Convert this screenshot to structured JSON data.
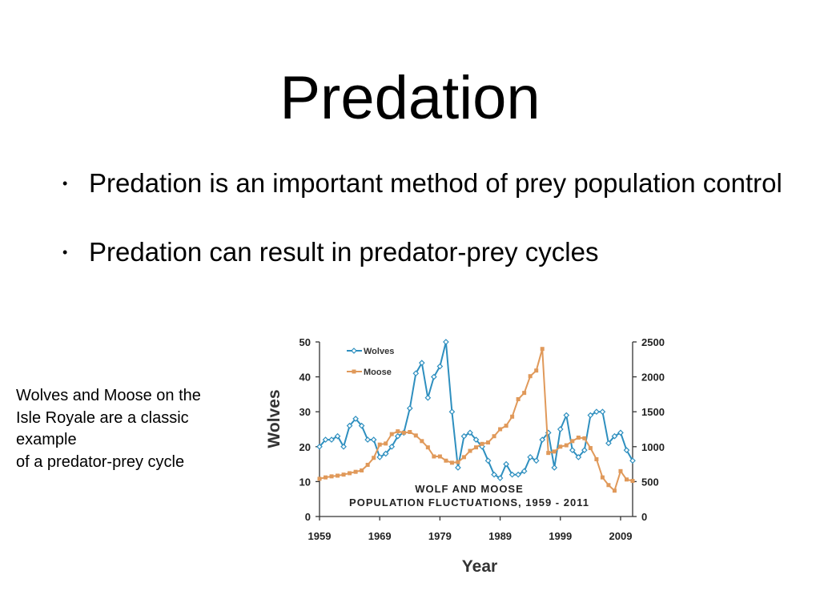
{
  "slide": {
    "title": "Predation",
    "bullets": [
      "Predation is an important method of prey population control",
      "Predation can result in predator-prey cycles"
    ],
    "bullet_glyph": "•",
    "caption_lines": [
      "Wolves and Moose on the",
      "Isle Royale are a classic",
      "example",
      "of a predator-prey cycle"
    ]
  },
  "chart_data": {
    "type": "line",
    "title_lines": [
      "WOLF AND MOOSE",
      "POPULATION FLUCTUATIONS, 1959 - 2011"
    ],
    "xlabel": "Year",
    "ylabel": "Wolves",
    "xlim": [
      1959,
      2011
    ],
    "x_ticks": [
      1959,
      1969,
      1979,
      1989,
      1999,
      2009
    ],
    "y_left_lim": [
      0,
      50
    ],
    "y_left_ticks": [
      0,
      10,
      20,
      30,
      40,
      50
    ],
    "y_right_lim": [
      0,
      2500
    ],
    "y_right_ticks": [
      0,
      500,
      1000,
      1500,
      2000,
      2500
    ],
    "legend_position": "top-left",
    "grid": false,
    "x": [
      1959,
      1960,
      1961,
      1962,
      1963,
      1964,
      1965,
      1966,
      1967,
      1968,
      1969,
      1970,
      1971,
      1972,
      1973,
      1974,
      1975,
      1976,
      1977,
      1978,
      1979,
      1980,
      1981,
      1982,
      1983,
      1984,
      1985,
      1986,
      1987,
      1988,
      1989,
      1990,
      1991,
      1992,
      1993,
      1994,
      1995,
      1996,
      1997,
      1998,
      1999,
      2000,
      2001,
      2002,
      2003,
      2004,
      2005,
      2006,
      2007,
      2008,
      2009,
      2010,
      2011
    ],
    "series": [
      {
        "name": "Wolves",
        "axis": "left",
        "color": "#2e8fbf",
        "marker": "diamond",
        "values": [
          20,
          22,
          22,
          23,
          20,
          26,
          28,
          26,
          22,
          22,
          17,
          18,
          20,
          23,
          24,
          31,
          41,
          44,
          34,
          40,
          43,
          50,
          30,
          14,
          23,
          24,
          22,
          20,
          16,
          12,
          11,
          15,
          12,
          12,
          13,
          17,
          16,
          22,
          24,
          14,
          25,
          29,
          19,
          17,
          19,
          29,
          30,
          30,
          21,
          23,
          24,
          19,
          16
        ]
      },
      {
        "name": "Moose",
        "axis": "right",
        "color": "#e0995a",
        "marker": "square",
        "values": [
          540,
          560,
          575,
          585,
          600,
          620,
          640,
          660,
          740,
          840,
          1030,
          1045,
          1180,
          1220,
          1200,
          1210,
          1160,
          1080,
          990,
          860,
          860,
          800,
          770,
          780,
          850,
          940,
          990,
          1040,
          1060,
          1150,
          1250,
          1300,
          1430,
          1680,
          1770,
          2010,
          2090,
          2400,
          910,
          930,
          1000,
          1020,
          1080,
          1130,
          1120,
          980,
          820,
          560,
          450,
          370,
          650,
          530,
          510
        ]
      }
    ]
  }
}
